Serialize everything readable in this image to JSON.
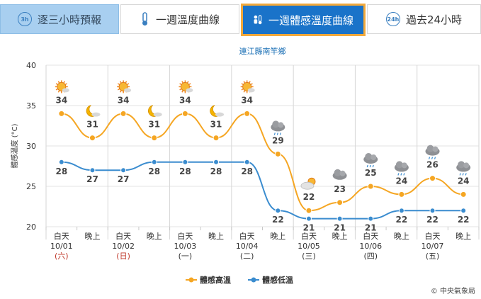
{
  "tabs": [
    {
      "label": "逐三小時預報",
      "icon": "3h-clock-icon",
      "active": false
    },
    {
      "label": "一週溫度曲線",
      "icon": "thermometer-icon",
      "active": false
    },
    {
      "label": "一週體感溫度曲線",
      "icon": "feels-like-icon",
      "active": true
    },
    {
      "label": "過去24小時",
      "icon": "24h-clock-icon",
      "active": false
    }
  ],
  "copyright": "© 中央氣象局",
  "chart_data": {
    "type": "line",
    "title": "連江縣南竿鄉",
    "ylabel": "體感溫度 (°C)",
    "ylim": [
      20,
      40
    ],
    "yticks": [
      20,
      25,
      30,
      35,
      40
    ],
    "categories": [
      "白天",
      "晚上",
      "白天",
      "晚上",
      "白天",
      "晚上",
      "白天",
      "晚上",
      "白天",
      "晚上",
      "白天",
      "晚上",
      "白天",
      "晚上"
    ],
    "dates": [
      {
        "date": "10/01",
        "weekday": "(六)",
        "weekend": true
      },
      {
        "date": "10/02",
        "weekday": "(日)",
        "weekend": true
      },
      {
        "date": "10/03",
        "weekday": "(一)",
        "weekend": false
      },
      {
        "date": "10/04",
        "weekday": "(二)",
        "weekend": false
      },
      {
        "date": "10/05",
        "weekday": "(三)",
        "weekend": false
      },
      {
        "date": "10/06",
        "weekday": "(四)",
        "weekend": false
      },
      {
        "date": "10/07",
        "weekday": "(五)",
        "weekend": false
      }
    ],
    "series": [
      {
        "name": "體感高溫",
        "color": "#f5a623",
        "values": [
          34,
          31,
          34,
          31,
          34,
          31,
          34,
          29,
          22,
          23,
          25,
          24,
          26,
          24
        ]
      },
      {
        "name": "體感低溫",
        "color": "#3a8ccf",
        "values": [
          28,
          27,
          27,
          28,
          28,
          28,
          28,
          22,
          21,
          21,
          21,
          22,
          22,
          22
        ]
      }
    ],
    "weather_icons": [
      "sunny-icon",
      "moon-icon",
      "sunny-icon",
      "moon-icon",
      "sunny-icon",
      "moon-icon",
      "sunny-icon",
      "cloudy-rain-icon",
      "partly-cloudy-sun-icon",
      "cloudy-icon",
      "cloudy-rain-icon",
      "cloudy-rain-icon",
      "cloudy-rain-icon",
      "cloudy-rain-icon"
    ],
    "grid": true,
    "legend_position": "bottom"
  }
}
